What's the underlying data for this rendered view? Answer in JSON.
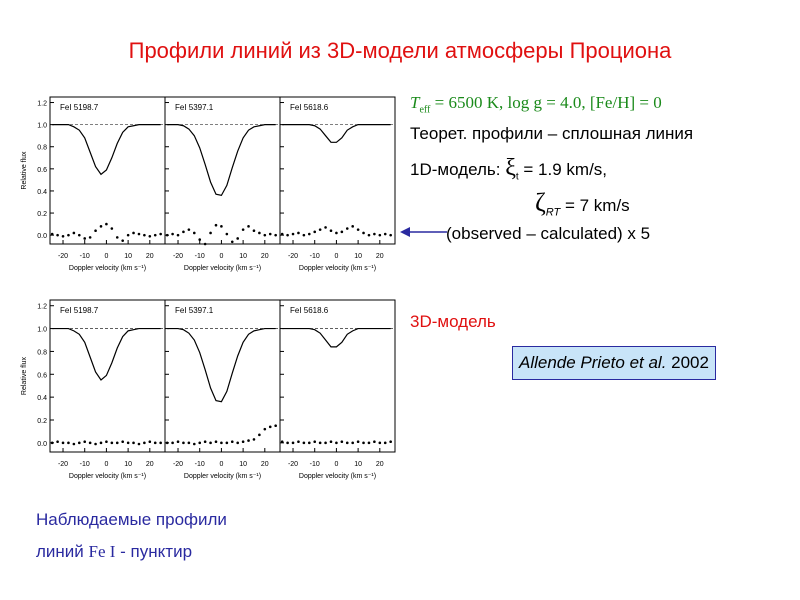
{
  "header": {
    "title": "Профили линий из 3D-модели атмосферы Проциона"
  },
  "notes": {
    "params": {
      "teff_symbol": "T",
      "teff_sub": "eff",
      "params_text": " = 6500 K, log g = 4.0, [Fe/H] = 0"
    },
    "theory": "Теорет. профили – сплошная линия",
    "model1d": {
      "prefix": "1D-модель: ",
      "xi": "ξ",
      "xi_sub": "t",
      "xi_value": " = 1.9 km/s,"
    },
    "zeta": {
      "symbol": "ζ",
      "sub": "RT",
      "value": " = 7 km/s"
    },
    "residual": "(observed – calculated) x 5",
    "model3d": "3D-модель",
    "reference": {
      "authors": "Allende Prieto et al.",
      "year": " 2002"
    },
    "footer": {
      "line1": "Наблюдаемые профили",
      "line2a": "линий ",
      "line2b": "Fe I",
      "line2c": " - пунктир"
    }
  },
  "chart_data": [
    {
      "type": "line",
      "title": "FeI 5198.7",
      "ylabel": "Relative flux",
      "xlabel": "Doppler velocity (km s⁻¹)",
      "x": [
        -25,
        -22.5,
        -20,
        -17.5,
        -15,
        -12.5,
        -10,
        -7.5,
        -5,
        -2.5,
        0,
        2.5,
        5,
        7.5,
        10,
        12.5,
        15,
        17.5,
        20,
        22.5,
        25
      ],
      "series": [
        {
          "color": "#000000",
          "values": [
            1,
            1,
            1,
            1,
            0.98,
            0.95,
            0.88,
            0.75,
            0.62,
            0.55,
            0.59,
            0.7,
            0.83,
            0.93,
            0.98,
            0.99,
            1,
            1,
            1,
            1,
            1
          ]
        },
        {
          "color": "#000000",
          "values": [
            0.01,
            0,
            -0.01,
            0,
            0.02,
            0,
            -0.03,
            -0.02,
            0.04,
            0.08,
            0.1,
            0.06,
            -0.02,
            -0.05,
            0,
            0.02,
            0.01,
            0,
            -0.01,
            0,
            0.01
          ]
        }
      ],
      "xlim": [
        -26,
        27
      ],
      "ylim": [
        -0.08,
        1.25
      ],
      "xticks": [
        -20,
        -10,
        0,
        10,
        20
      ],
      "yticks": [
        {
          "value": 0,
          "label": "0.0"
        },
        0.2,
        0.4,
        0.6,
        0.8,
        {
          "value": 1,
          "label": "1.0"
        },
        1.2
      ]
    },
    {
      "type": "line",
      "title": "FeI 5397.1",
      "xlabel": "Doppler velocity (km s⁻¹)",
      "x": [
        -25,
        -22.5,
        -20,
        -17.5,
        -15,
        -12.5,
        -10,
        -7.5,
        -5,
        -2.5,
        0,
        2.5,
        5,
        7.5,
        10,
        12.5,
        15,
        17.5,
        20,
        22.5,
        25
      ],
      "series": [
        {
          "color": "#000000",
          "values": [
            1,
            1,
            1,
            0.99,
            0.96,
            0.9,
            0.79,
            0.64,
            0.48,
            0.37,
            0.36,
            0.45,
            0.61,
            0.76,
            0.88,
            0.95,
            0.98,
            0.99,
            1,
            1,
            1
          ]
        },
        {
          "color": "#000000",
          "values": [
            0,
            0.01,
            0,
            0.03,
            0.05,
            0.02,
            -0.04,
            -0.08,
            0.02,
            0.09,
            0.08,
            0.01,
            -0.06,
            -0.03,
            0.05,
            0.08,
            0.04,
            0.02,
            0,
            0.01,
            0
          ]
        }
      ],
      "xlim": [
        -26,
        27
      ],
      "ylim": [
        -0.08,
        1.25
      ],
      "xticks": [
        -20,
        -10,
        0,
        10,
        20
      ],
      "yticks": [
        0,
        0.2,
        0.4,
        0.6,
        0.8,
        1,
        1.2
      ]
    },
    {
      "type": "line",
      "title": "FeI 5618.6",
      "xlabel": "Doppler velocity (km s⁻¹)",
      "x": [
        -25,
        -22.5,
        -20,
        -17.5,
        -15,
        -12.5,
        -10,
        -7.5,
        -5,
        -2.5,
        0,
        2.5,
        5,
        7.5,
        10,
        12.5,
        15,
        17.5,
        20,
        22.5,
        25
      ],
      "series": [
        {
          "color": "#000000",
          "values": [
            1,
            1,
            1,
            1,
            1,
            1,
            0.99,
            0.96,
            0.9,
            0.84,
            0.84,
            0.88,
            0.95,
            0.98,
            1,
            1,
            1,
            1,
            1,
            1,
            1
          ]
        },
        {
          "color": "#000000",
          "values": [
            0.01,
            0,
            0.01,
            0.02,
            0,
            0.01,
            0.03,
            0.05,
            0.07,
            0.04,
            0.02,
            0.03,
            0.06,
            0.08,
            0.05,
            0.02,
            0,
            0.01,
            0,
            0.01,
            0
          ]
        }
      ],
      "xlim": [
        -26,
        27
      ],
      "ylim": [
        -0.08,
        1.25
      ],
      "xticks": [
        -20,
        -10,
        0,
        10,
        20
      ],
      "yticks": [
        0,
        0.2,
        0.4,
        0.6,
        0.8,
        1,
        1.2
      ]
    },
    {
      "type": "line",
      "title": "FeI 5198.7",
      "ylabel": "Relative flux",
      "xlabel": "Doppler velocity (km s⁻¹)",
      "x": [
        -25,
        -22.5,
        -20,
        -17.5,
        -15,
        -12.5,
        -10,
        -7.5,
        -5,
        -2.5,
        0,
        2.5,
        5,
        7.5,
        10,
        12.5,
        15,
        17.5,
        20,
        22.5,
        25
      ],
      "series": [
        {
          "color": "#000000",
          "values": [
            1,
            1,
            1,
            1,
            0.98,
            0.95,
            0.88,
            0.75,
            0.62,
            0.55,
            0.59,
            0.7,
            0.83,
            0.93,
            0.98,
            0.99,
            1,
            1,
            1,
            1,
            1
          ]
        },
        {
          "color": "#000000",
          "values": [
            0,
            0.01,
            0,
            0,
            -0.01,
            0,
            0.01,
            0,
            -0.01,
            0,
            0.01,
            0,
            0,
            0.01,
            0,
            0,
            -0.01,
            0,
            0.01,
            0,
            0
          ]
        }
      ],
      "xlim": [
        -26,
        27
      ],
      "ylim": [
        -0.08,
        1.25
      ],
      "xticks": [
        -20,
        -10,
        0,
        10,
        20
      ],
      "yticks": [
        {
          "value": 0,
          "label": "0.0"
        },
        0.2,
        0.4,
        0.6,
        0.8,
        {
          "value": 1,
          "label": "1.0"
        },
        1.2
      ]
    },
    {
      "type": "line",
      "title": "FeI 5397.1",
      "xlabel": "Doppler velocity (km s⁻¹)",
      "x": [
        -25,
        -22.5,
        -20,
        -17.5,
        -15,
        -12.5,
        -10,
        -7.5,
        -5,
        -2.5,
        0,
        2.5,
        5,
        7.5,
        10,
        12.5,
        15,
        17.5,
        20,
        22.5,
        25
      ],
      "series": [
        {
          "color": "#000000",
          "values": [
            1,
            1,
            1,
            0.99,
            0.96,
            0.9,
            0.79,
            0.64,
            0.48,
            0.37,
            0.36,
            0.45,
            0.61,
            0.76,
            0.88,
            0.95,
            0.98,
            0.99,
            1,
            1,
            1
          ]
        },
        {
          "color": "#000000",
          "values": [
            0,
            0,
            0.01,
            0,
            0,
            -0.01,
            0,
            0.01,
            0,
            0.01,
            0,
            0,
            0.01,
            0,
            0.01,
            0.02,
            0.03,
            0.07,
            0.12,
            0.14,
            0.15
          ]
        }
      ],
      "xlim": [
        -26,
        27
      ],
      "ylim": [
        -0.08,
        1.25
      ],
      "xticks": [
        -20,
        -10,
        0,
        10,
        20
      ],
      "yticks": [
        0,
        0.2,
        0.4,
        0.6,
        0.8,
        1,
        1.2
      ]
    },
    {
      "type": "line",
      "title": "FeI 5618.6",
      "xlabel": "Doppler velocity (km s⁻¹)",
      "x": [
        -25,
        -22.5,
        -20,
        -17.5,
        -15,
        -12.5,
        -10,
        -7.5,
        -5,
        -2.5,
        0,
        2.5,
        5,
        7.5,
        10,
        12.5,
        15,
        17.5,
        20,
        22.5,
        25
      ],
      "series": [
        {
          "color": "#000000",
          "values": [
            1,
            1,
            1,
            1,
            1,
            1,
            0.99,
            0.96,
            0.9,
            0.84,
            0.84,
            0.88,
            0.95,
            0.98,
            1,
            1,
            1,
            1,
            1,
            1,
            1
          ]
        },
        {
          "color": "#000000",
          "values": [
            0.01,
            0,
            0,
            0.01,
            0,
            0,
            0.01,
            0,
            0,
            0.01,
            0,
            0.01,
            0,
            0,
            0.01,
            0,
            0,
            0.01,
            0,
            0,
            0.01
          ]
        }
      ],
      "xlim": [
        -26,
        27
      ],
      "ylim": [
        -0.08,
        1.25
      ],
      "xticks": [
        -20,
        -10,
        0,
        10,
        20
      ],
      "yticks": [
        0,
        0.2,
        0.4,
        0.6,
        0.8,
        1,
        1.2
      ]
    }
  ]
}
